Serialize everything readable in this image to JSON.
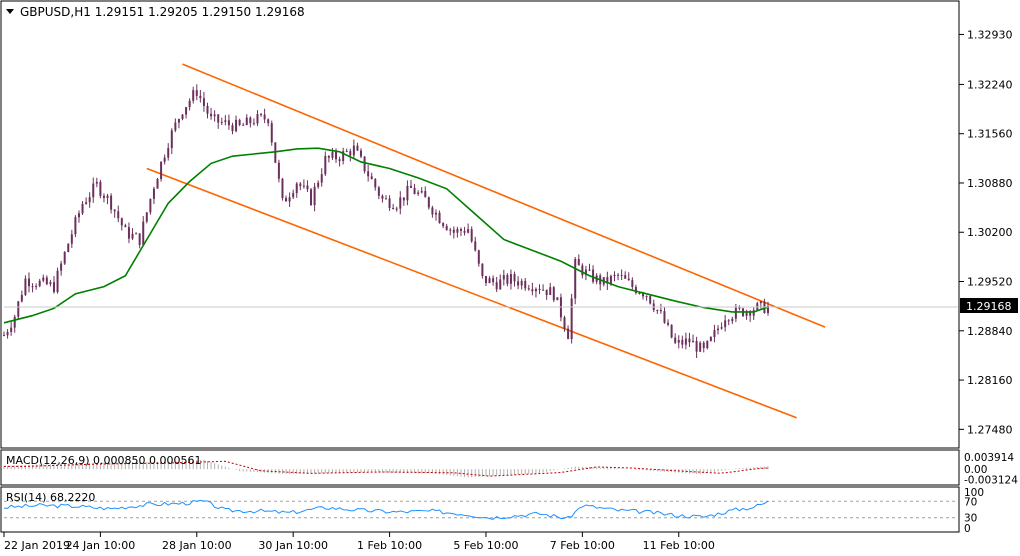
{
  "chart_data": {
    "type": "candlestick",
    "symbol_title": "GBPUSD,H1  1.29151 1.29205 1.29150 1.29168",
    "price_axis": {
      "ticks": [
        1.3293,
        1.3224,
        1.3156,
        1.3088,
        1.302,
        1.2952,
        1.2884,
        1.2816,
        1.2748
      ],
      "tick_labels": [
        "1.32930",
        "1.32240",
        "1.31560",
        "1.30880",
        "1.30200",
        "1.29520",
        "1.28840",
        "1.28160",
        "1.27480"
      ],
      "ylim": [
        1.2725,
        1.3335
      ],
      "current_price": 1.29168,
      "current_label": "1.29168"
    },
    "time_axis": {
      "labels": [
        "22 Jan 2019",
        "24 Jan 10:00",
        "28 Jan 10:00",
        "30 Jan 10:00",
        "1 Feb 10:00",
        "5 Feb 10:00",
        "7 Feb 10:00",
        "11 Feb 10:00"
      ],
      "label_bar_index": [
        0,
        27,
        54,
        81,
        108,
        135,
        162,
        189
      ]
    },
    "bar_count": 215,
    "close_path": [
      [
        0,
        1.2878
      ],
      [
        3,
        1.2905
      ],
      [
        6,
        1.2955
      ],
      [
        10,
        1.295
      ],
      [
        14,
        1.2945
      ],
      [
        18,
        1.3005
      ],
      [
        22,
        1.306
      ],
      [
        26,
        1.3085
      ],
      [
        30,
        1.306
      ],
      [
        34,
        1.302
      ],
      [
        38,
        1.301
      ],
      [
        42,
        1.3085
      ],
      [
        46,
        1.3145
      ],
      [
        50,
        1.319
      ],
      [
        54,
        1.3215
      ],
      [
        58,
        1.3175
      ],
      [
        62,
        1.317
      ],
      [
        66,
        1.3165
      ],
      [
        70,
        1.3175
      ],
      [
        74,
        1.3178
      ],
      [
        78,
        1.306
      ],
      [
        82,
        1.309
      ],
      [
        86,
        1.3065
      ],
      [
        90,
        1.312
      ],
      [
        94,
        1.3125
      ],
      [
        98,
        1.3135
      ],
      [
        102,
        1.31
      ],
      [
        106,
        1.3065
      ],
      [
        110,
        1.306
      ],
      [
        114,
        1.308
      ],
      [
        118,
        1.3065
      ],
      [
        122,
        1.304
      ],
      [
        126,
        1.302
      ],
      [
        130,
        1.3025
      ],
      [
        134,
        1.2955
      ],
      [
        138,
        1.295
      ],
      [
        142,
        1.2955
      ],
      [
        146,
        1.295
      ],
      [
        150,
        1.2945
      ],
      [
        154,
        1.2935
      ],
      [
        158,
        1.288
      ],
      [
        160,
        1.2975
      ],
      [
        164,
        1.296
      ],
      [
        168,
        1.295
      ],
      [
        172,
        1.296
      ],
      [
        176,
        1.2945
      ],
      [
        180,
        1.2935
      ],
      [
        184,
        1.2905
      ],
      [
        188,
        1.2865
      ],
      [
        192,
        1.287
      ],
      [
        196,
        1.2855
      ],
      [
        198,
        1.287
      ],
      [
        202,
        1.2905
      ],
      [
        206,
        1.291
      ],
      [
        210,
        1.2915
      ],
      [
        214,
        1.29168
      ]
    ],
    "moving_average_color": "#008000",
    "moving_average": [
      [
        0,
        1.2895
      ],
      [
        8,
        1.2905
      ],
      [
        14,
        1.2915
      ],
      [
        20,
        1.2935
      ],
      [
        28,
        1.2945
      ],
      [
        34,
        1.296
      ],
      [
        40,
        1.301
      ],
      [
        46,
        1.306
      ],
      [
        52,
        1.309
      ],
      [
        58,
        1.3115
      ],
      [
        64,
        1.3125
      ],
      [
        70,
        1.3128
      ],
      [
        76,
        1.3131
      ],
      [
        82,
        1.3135
      ],
      [
        88,
        1.3136
      ],
      [
        94,
        1.3131
      ],
      [
        100,
        1.3117
      ],
      [
        108,
        1.3108
      ],
      [
        116,
        1.3095
      ],
      [
        124,
        1.308
      ],
      [
        132,
        1.3045
      ],
      [
        140,
        1.301
      ],
      [
        148,
        1.2995
      ],
      [
        156,
        1.298
      ],
      [
        164,
        1.296
      ],
      [
        172,
        1.2945
      ],
      [
        180,
        1.2935
      ],
      [
        188,
        1.2925
      ],
      [
        196,
        1.2916
      ],
      [
        204,
        1.291
      ],
      [
        210,
        1.291
      ],
      [
        214,
        1.29168
      ]
    ],
    "channel_color": "#ff6400",
    "channel_upper": [
      [
        50,
        1.3252
      ],
      [
        216,
        1.2889
      ]
    ],
    "channel_lower": [
      [
        40,
        1.3108
      ],
      [
        208,
        1.2764
      ]
    ],
    "macd": {
      "label": "MACD(12,26,9) 0.000850 0.000561",
      "ticks": [
        "0.003914",
        "0.00",
        "-0.003124"
      ],
      "ylim": [
        -0.0042,
        0.0052
      ],
      "signal_color": "#c00000",
      "histogram_color": "#b0b0b0",
      "histogram_profile": [
        [
          0,
          0.001
        ],
        [
          20,
          0.0018
        ],
        [
          40,
          0.0022
        ],
        [
          56,
          0.0028
        ],
        [
          66,
          -0.0006
        ],
        [
          80,
          -0.0015
        ],
        [
          100,
          -0.001
        ],
        [
          120,
          -0.0013
        ],
        [
          130,
          -0.0025
        ],
        [
          150,
          -0.0012
        ],
        [
          160,
          0.0008
        ],
        [
          170,
          0.0004
        ],
        [
          185,
          -0.0008
        ],
        [
          195,
          -0.0015
        ],
        [
          205,
          0.0002
        ],
        [
          214,
          0.00085
        ]
      ]
    },
    "rsi": {
      "label": "RSI(14) 68.2220",
      "ticks": [
        "100",
        "70",
        "30",
        "0"
      ],
      "ylim": [
        0,
        100
      ],
      "line_color": "#1e90ff",
      "level_color": "#a0a0a0",
      "profile": [
        [
          0,
          55
        ],
        [
          10,
          60
        ],
        [
          20,
          58
        ],
        [
          30,
          52
        ],
        [
          40,
          62
        ],
        [
          50,
          65
        ],
        [
          56,
          70
        ],
        [
          62,
          48
        ],
        [
          72,
          46
        ],
        [
          80,
          42
        ],
        [
          90,
          55
        ],
        [
          100,
          48
        ],
        [
          110,
          44
        ],
        [
          120,
          46
        ],
        [
          130,
          38
        ],
        [
          136,
          30
        ],
        [
          150,
          40
        ],
        [
          158,
          28
        ],
        [
          162,
          60
        ],
        [
          172,
          48
        ],
        [
          180,
          44
        ],
        [
          188,
          36
        ],
        [
          196,
          32
        ],
        [
          204,
          48
        ],
        [
          210,
          56
        ],
        [
          214,
          68.222
        ]
      ]
    }
  }
}
